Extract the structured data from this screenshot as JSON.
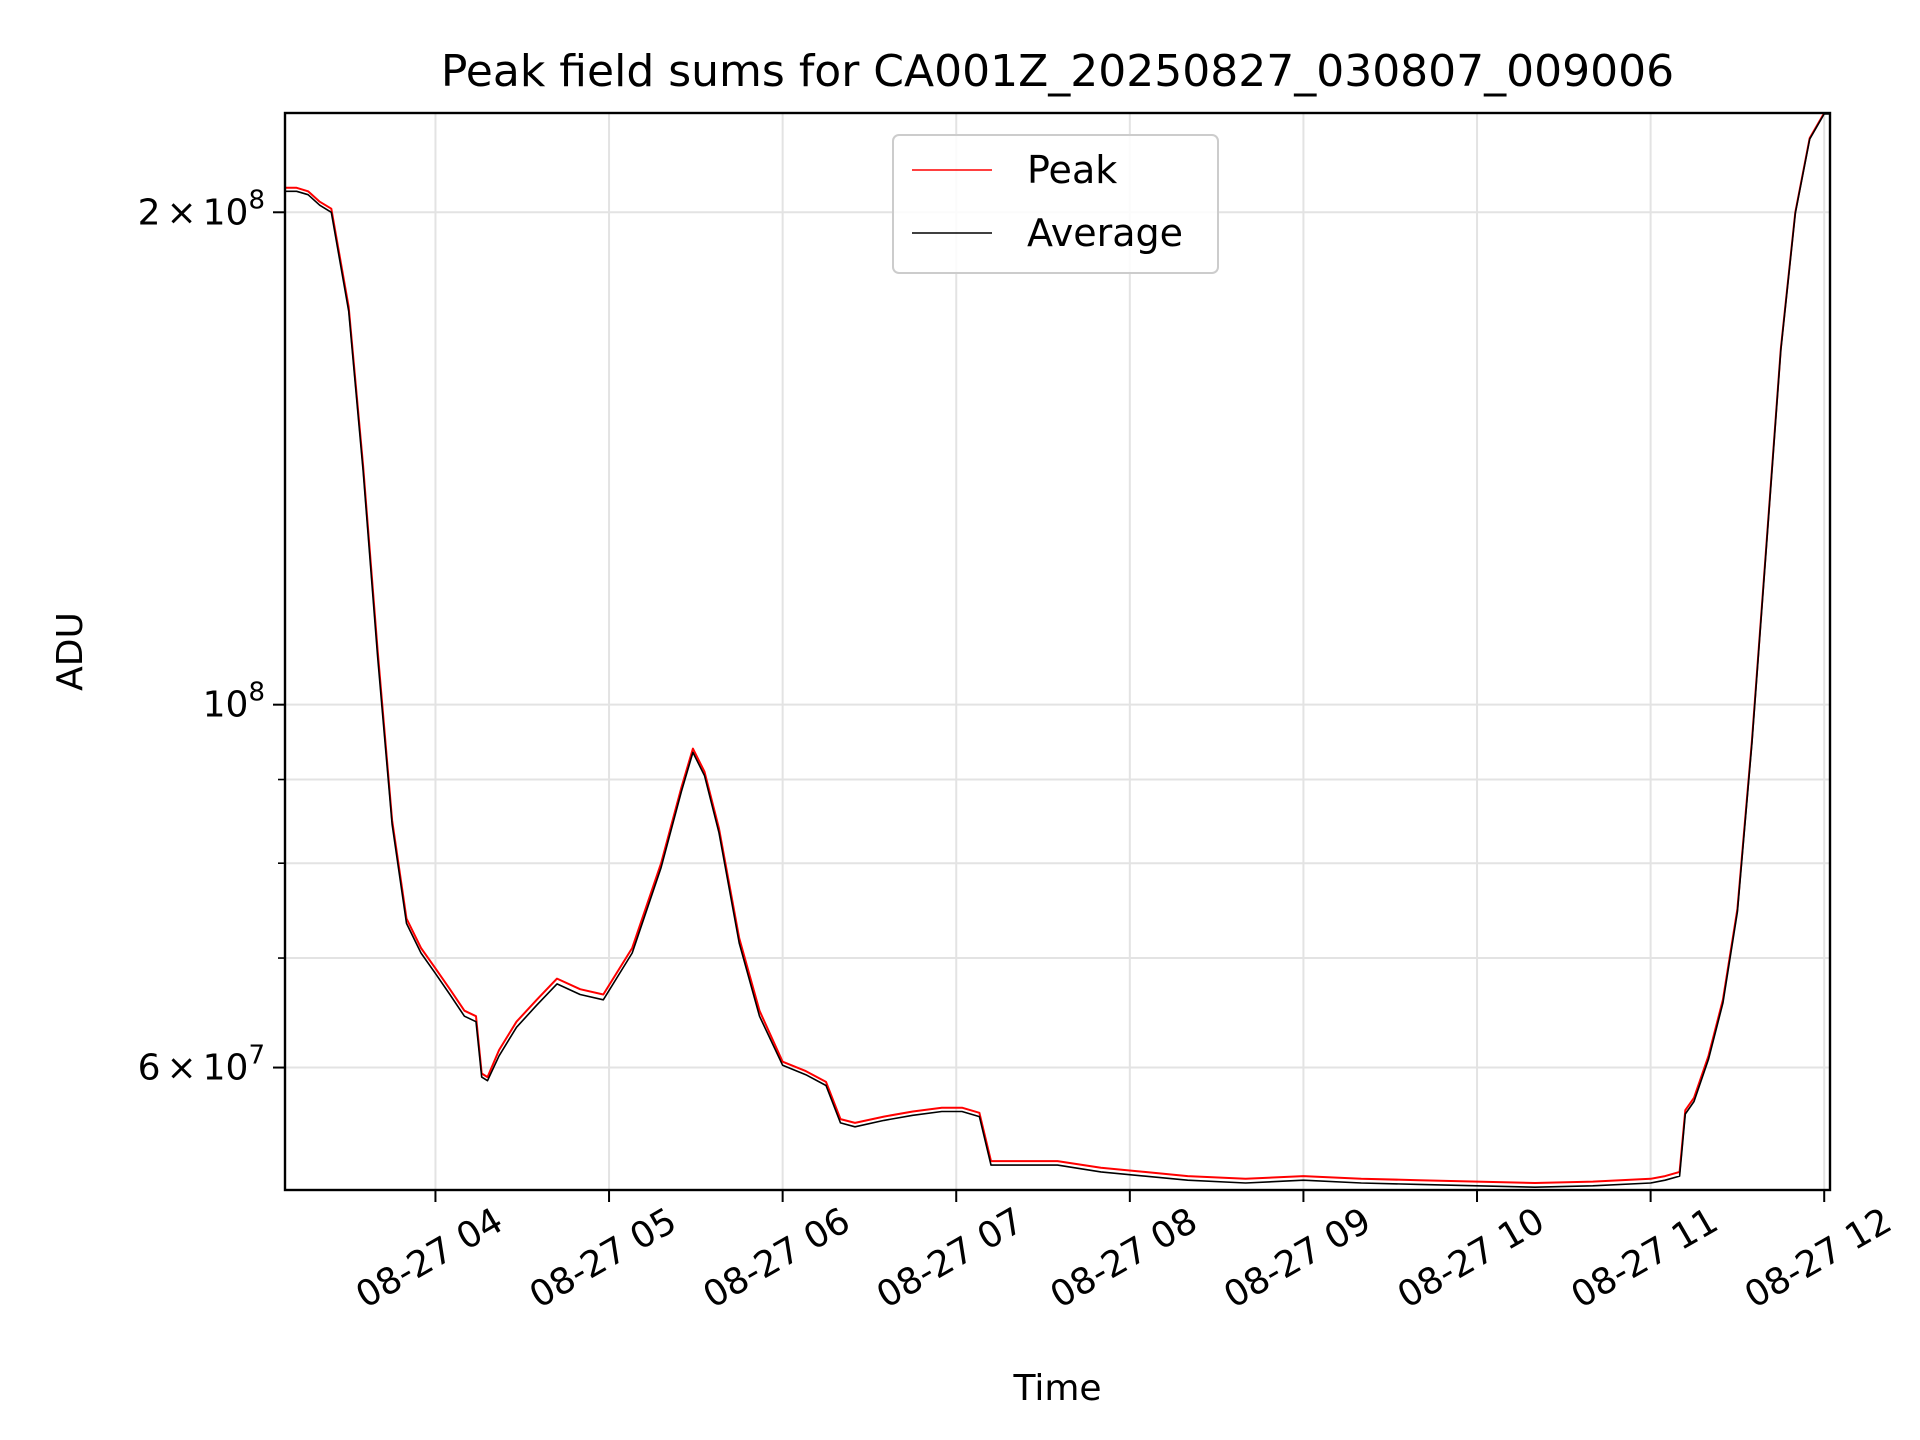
{
  "chart_data": {
    "type": "line",
    "title": "Peak field sums for CA001Z_20250827_030807_009006",
    "xlabel": "Time",
    "ylabel": "ADU",
    "yscale": "log",
    "grid": true,
    "legend_position": "upper center",
    "xlim": [
      "08-27 03:08",
      "08-27 12:02"
    ],
    "ylim": [
      50500000,
      230000000
    ],
    "x_ticks": [
      {
        "label": "08-27 04",
        "value": "08-27 04:00"
      },
      {
        "label": "08-27 05",
        "value": "08-27 05:00"
      },
      {
        "label": "08-27 06",
        "value": "08-27 06:00"
      },
      {
        "label": "08-27 07",
        "value": "08-27 07:00"
      },
      {
        "label": "08-27 08",
        "value": "08-27 08:00"
      },
      {
        "label": "08-27 09",
        "value": "08-27 09:00"
      },
      {
        "label": "08-27 10",
        "value": "08-27 10:00"
      },
      {
        "label": "08-27 11",
        "value": "08-27 11:00"
      },
      {
        "label": "08-27 12",
        "value": "08-27 12:00"
      }
    ],
    "y_ticks": [
      {
        "base": "2",
        "exp": "8",
        "value": 200000000
      },
      {
        "base": "",
        "exp": "8",
        "value": 100000000
      },
      {
        "base": "6",
        "exp": "7",
        "value": 60000000
      }
    ],
    "y_minor_ticks": [
      70000000,
      80000000,
      90000000,
      300000000
    ],
    "series": [
      {
        "name": "Peak",
        "color": "#ff0000",
        "x": [
          "08-27 03:08",
          "08-27 03:12",
          "08-27 03:16",
          "08-27 03:20",
          "08-27 03:24",
          "08-27 03:30",
          "08-27 03:35",
          "08-27 03:40",
          "08-27 03:45",
          "08-27 03:50",
          "08-27 03:55",
          "08-27 04:00",
          "08-27 04:05",
          "08-27 04:10",
          "08-27 04:14",
          "08-27 04:16",
          "08-27 04:18",
          "08-27 04:22",
          "08-27 04:28",
          "08-27 04:35",
          "08-27 04:42",
          "08-27 04:50",
          "08-27 04:58",
          "08-27 05:08",
          "08-27 05:18",
          "08-27 05:25",
          "08-27 05:29",
          "08-27 05:33",
          "08-27 05:38",
          "08-27 05:45",
          "08-27 05:52",
          "08-27 06:00",
          "08-27 06:08",
          "08-27 06:15",
          "08-27 06:20",
          "08-27 06:25",
          "08-27 06:35",
          "08-27 06:45",
          "08-27 06:55",
          "08-27 07:02",
          "08-27 07:08",
          "08-27 07:12",
          "08-27 07:20",
          "08-27 07:35",
          "08-27 07:50",
          "08-27 08:05",
          "08-27 08:20",
          "08-27 08:40",
          "08-27 09:00",
          "08-27 09:20",
          "08-27 09:40",
          "08-27 10:00",
          "08-27 10:20",
          "08-27 10:40",
          "08-27 11:00",
          "08-27 11:05",
          "08-27 11:10",
          "08-27 11:12",
          "08-27 11:15",
          "08-27 11:20",
          "08-27 11:25",
          "08-27 11:30",
          "08-27 11:35",
          "08-27 11:40",
          "08-27 11:45",
          "08-27 11:50",
          "08-27 11:55",
          "08-27 12:00",
          "08-27 12:02"
        ],
        "y": [
          207000000,
          207000000,
          206000000,
          203000000,
          201000000,
          175000000,
          140000000,
          108000000,
          85000000,
          74000000,
          71000000,
          69000000,
          67000000,
          65000000,
          64500000,
          59500000,
          59200000,
          61500000,
          64000000,
          66000000,
          68000000,
          67000000,
          66500000,
          71000000,
          80000000,
          89000000,
          94000000,
          91000000,
          84000000,
          72000000,
          65000000,
          60500000,
          59700000,
          58800000,
          55800000,
          55500000,
          56000000,
          56400000,
          56700000,
          56700000,
          56300000,
          52600000,
          52600000,
          52600000,
          52100000,
          51800000,
          51500000,
          51300000,
          51500000,
          51300000,
          51200000,
          51100000,
          51000000,
          51100000,
          51300000,
          51500000,
          51800000,
          56500000,
          57500000,
          61000000,
          66000000,
          75000000,
          95000000,
          125000000,
          165000000,
          200000000,
          222000000,
          230000000,
          230000000
        ]
      },
      {
        "name": "Average",
        "color": "#000000",
        "x": [
          "08-27 03:08",
          "08-27 03:12",
          "08-27 03:16",
          "08-27 03:20",
          "08-27 03:24",
          "08-27 03:30",
          "08-27 03:35",
          "08-27 03:40",
          "08-27 03:45",
          "08-27 03:50",
          "08-27 03:55",
          "08-27 04:00",
          "08-27 04:05",
          "08-27 04:10",
          "08-27 04:14",
          "08-27 04:16",
          "08-27 04:18",
          "08-27 04:22",
          "08-27 04:28",
          "08-27 04:35",
          "08-27 04:42",
          "08-27 04:50",
          "08-27 04:58",
          "08-27 05:08",
          "08-27 05:18",
          "08-27 05:25",
          "08-27 05:29",
          "08-27 05:33",
          "08-27 05:38",
          "08-27 05:45",
          "08-27 05:52",
          "08-27 06:00",
          "08-27 06:08",
          "08-27 06:15",
          "08-27 06:20",
          "08-27 06:25",
          "08-27 06:35",
          "08-27 06:45",
          "08-27 06:55",
          "08-27 07:02",
          "08-27 07:08",
          "08-27 07:12",
          "08-27 07:20",
          "08-27 07:35",
          "08-27 07:50",
          "08-27 08:05",
          "08-27 08:20",
          "08-27 08:40",
          "08-27 09:00",
          "08-27 09:20",
          "08-27 09:40",
          "08-27 10:00",
          "08-27 10:20",
          "08-27 10:40",
          "08-27 11:00",
          "08-27 11:05",
          "08-27 11:10",
          "08-27 11:12",
          "08-27 11:15",
          "08-27 11:20",
          "08-27 11:25",
          "08-27 11:30",
          "08-27 11:35",
          "08-27 11:40",
          "08-27 11:45",
          "08-27 11:50",
          "08-27 11:55",
          "08-27 12:00",
          "08-27 12:02"
        ],
        "y": [
          206000000,
          206000000,
          205000000,
          202000000,
          200000000,
          174000000,
          139000000,
          107000000,
          84500000,
          73500000,
          70500000,
          68500000,
          66500000,
          64500000,
          64000000,
          59200000,
          58900000,
          61000000,
          63500000,
          65500000,
          67500000,
          66500000,
          66000000,
          70500000,
          79500000,
          88500000,
          93500000,
          90500000,
          83500000,
          71500000,
          64500000,
          60200000,
          59400000,
          58500000,
          55500000,
          55200000,
          55700000,
          56100000,
          56400000,
          56400000,
          56000000,
          52300000,
          52300000,
          52300000,
          51800000,
          51500000,
          51200000,
          51000000,
          51200000,
          51000000,
          50900000,
          50800000,
          50700000,
          50800000,
          51000000,
          51200000,
          51500000,
          56200000,
          57200000,
          60700000,
          65700000,
          74700000,
          94700000,
          124700000,
          164700000,
          199700000,
          221700000,
          229700000,
          229700000
        ]
      }
    ]
  }
}
